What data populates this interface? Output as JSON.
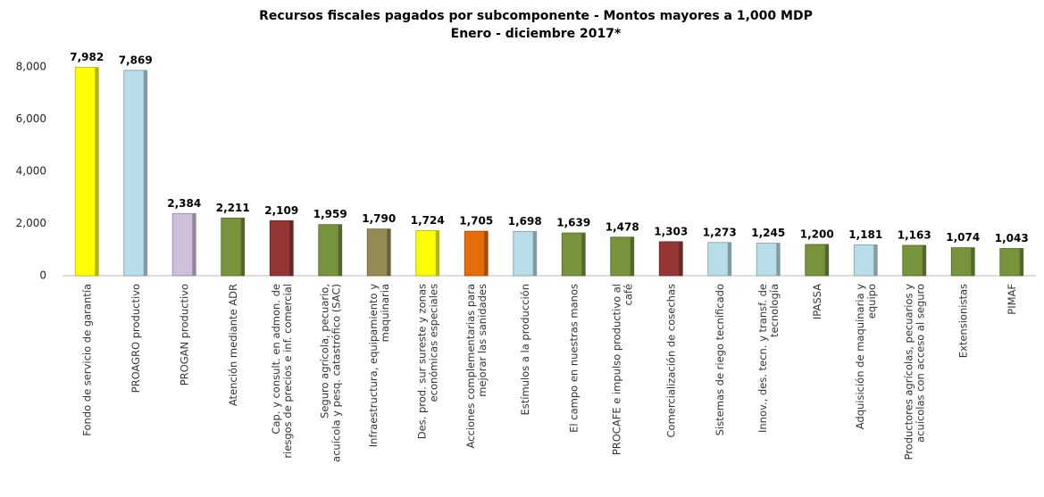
{
  "chart_data": {
    "type": "bar",
    "title": "Recursos fiscales pagados por subcomponente - Montos mayores a 1,000 MDP",
    "subtitle": "Enero - diciembre 2017*",
    "categories": [
      "Fondo de servicio de garantía",
      "PROAGRO productivo",
      "PROGAN productivo",
      "Atención mediante ADR",
      "Cap. y consult. en admon. de riesgos de precios e inf. comercial",
      "Seguro agrícola, pecuario, acuícola y pesq. catastrófico (SAC)",
      "Infraestructura, equipamiento y maquinaria",
      "Des. prod. sur sureste y zonas económicas especiales",
      "Acciones complementarias para mejorar las sanidades",
      "Estímulos a la producción",
      "El campo en nuestras manos",
      "PROCAFE e impulso productivo al café",
      "Comercialización de cosechas",
      "Sistemas de riego tecnificado",
      "Innov., des. tecn. y transf. de tecnología",
      "IPASSA",
      "Adquisición de maquinaria y equipo",
      "Productores agrícolas, pecuarios y acuícolas con acceso al seguro",
      "Extensionistas",
      "PIMAF"
    ],
    "values": [
      7982,
      7869,
      2384,
      2211,
      2109,
      1959,
      1790,
      1724,
      1705,
      1698,
      1639,
      1478,
      1303,
      1273,
      1245,
      1200,
      1181,
      1163,
      1074,
      1043
    ],
    "value_labels": [
      "7,982",
      "7,869",
      "2,384",
      "2,211",
      "2,109",
      "1,959",
      "1,790",
      "1,724",
      "1,705",
      "1,698",
      "1,639",
      "1,478",
      "1,303",
      "1,273",
      "1,245",
      "1,200",
      "1,181",
      "1,163",
      "1,074",
      "1,043"
    ],
    "colors": [
      "#ffff00",
      "#b7dde8",
      "#ccc0da",
      "#77933c",
      "#953735",
      "#77933c",
      "#948a54",
      "#ffff00",
      "#e46c0a",
      "#b7dde8",
      "#77933c",
      "#77933c",
      "#953735",
      "#b7dde8",
      "#b7dde8",
      "#77933c",
      "#b7dde8",
      "#77933c",
      "#77933c",
      "#77933c"
    ],
    "ylim": [
      0,
      8000
    ],
    "yticks": [
      0,
      {
        "value": 2000,
        "label": "2,000"
      },
      {
        "value": 4000,
        "label": "4,000"
      },
      {
        "value": 6000,
        "label": "6,000"
      },
      {
        "value": 8000,
        "label": "8,000"
      }
    ],
    "grid": false
  }
}
